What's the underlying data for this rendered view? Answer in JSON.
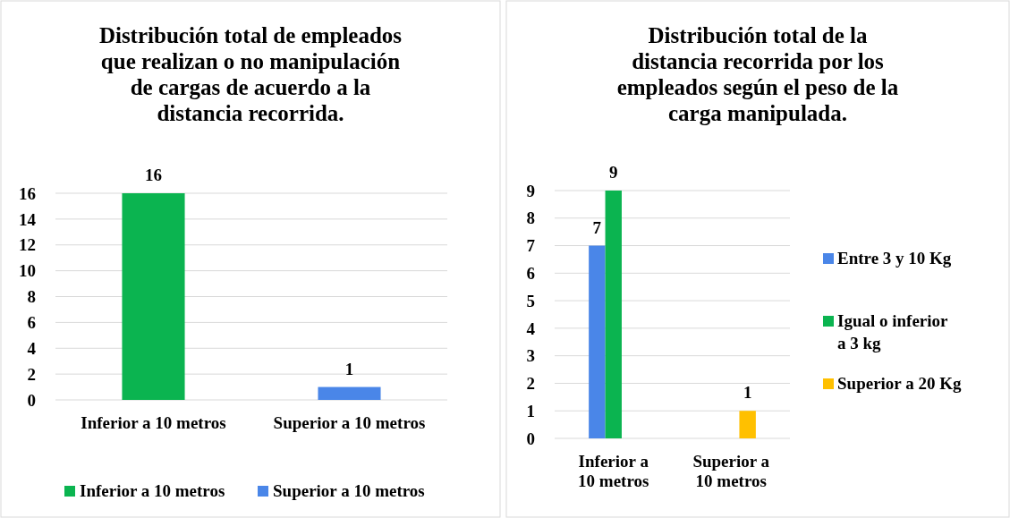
{
  "chart_data": [
    {
      "type": "bar",
      "title": "Distribución total de empleados que realizan o no manipulación de cargas de acuerdo a la distancia recorrida.",
      "categories": [
        "Inferior a 10 metros",
        "Superior a 10 metros"
      ],
      "series": [
        {
          "name": "Inferior a 10 metros",
          "color": "#0bb450",
          "values": [
            16,
            null
          ]
        },
        {
          "name": "Superior a 10 metros",
          "color": "#4a86e8",
          "values": [
            null,
            1
          ]
        }
      ],
      "ylim": [
        0,
        16
      ],
      "yticks": [
        0,
        2,
        4,
        6,
        8,
        10,
        12,
        14,
        16
      ],
      "grid": "y",
      "legend": "bottom",
      "data_labels": true
    },
    {
      "type": "bar",
      "title": "Distribución total de la distancia recorrida por los empleados según el peso de la carga manipulada.",
      "categories": [
        "Inferior a 10 metros",
        "Superior a 10 metros"
      ],
      "series": [
        {
          "name": "Entre 3 y 10 Kg",
          "color": "#4a86e8",
          "values": [
            7,
            null
          ]
        },
        {
          "name": "Igual o inferior a 3 kg",
          "color": "#0bb450",
          "values": [
            9,
            null
          ]
        },
        {
          "name": "Superior a 20 Kg",
          "color": "#ffc000",
          "values": [
            null,
            1
          ]
        }
      ],
      "ylim": [
        0,
        9
      ],
      "yticks": [
        0,
        1,
        2,
        3,
        4,
        5,
        6,
        7,
        8,
        9
      ],
      "grid": "y",
      "legend": "right",
      "data_labels": true
    }
  ]
}
